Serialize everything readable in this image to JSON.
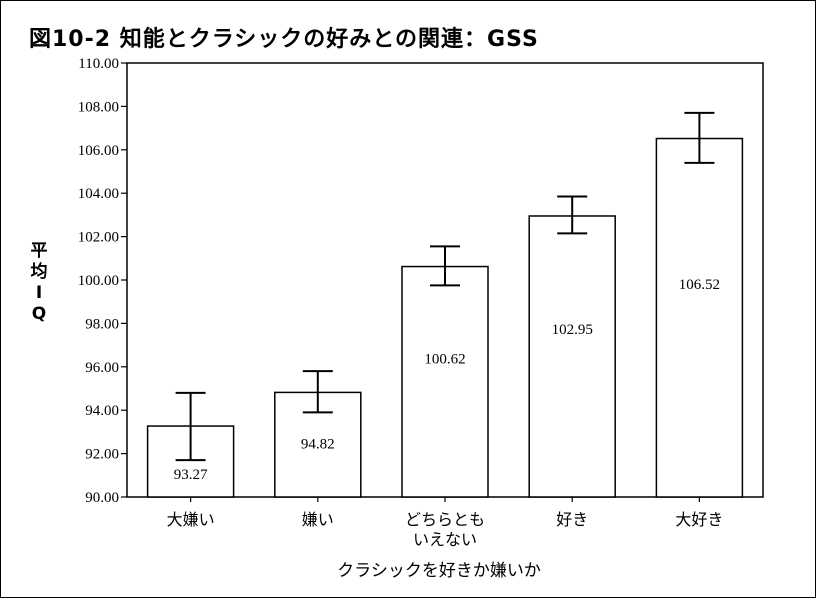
{
  "chart_data": {
    "type": "bar",
    "title": "図10-2 知能とクラシックの好みとの関連：GSS",
    "xlabel": "クラシックを好きか嫌いか",
    "ylabel_chars": [
      "平",
      "均",
      "I",
      "Q"
    ],
    "ylim": [
      90,
      110
    ],
    "yticks": [
      "90.00",
      "92.00",
      "94.00",
      "96.00",
      "98.00",
      "100.00",
      "102.00",
      "104.00",
      "106.00",
      "108.00",
      "110.00"
    ],
    "categories": [
      [
        "大嫌い"
      ],
      [
        "嫌い"
      ],
      [
        "どちらとも",
        "いえない"
      ],
      [
        "好き"
      ],
      [
        "大好き"
      ]
    ],
    "values": [
      93.27,
      94.82,
      100.62,
      102.95,
      106.52
    ],
    "value_labels": [
      "93.27",
      "94.82",
      "100.62",
      "102.95",
      "106.52"
    ],
    "error_low": [
      91.7,
      93.9,
      99.75,
      102.15,
      105.4
    ],
    "error_high": [
      94.8,
      95.8,
      101.55,
      103.85,
      107.7
    ]
  }
}
